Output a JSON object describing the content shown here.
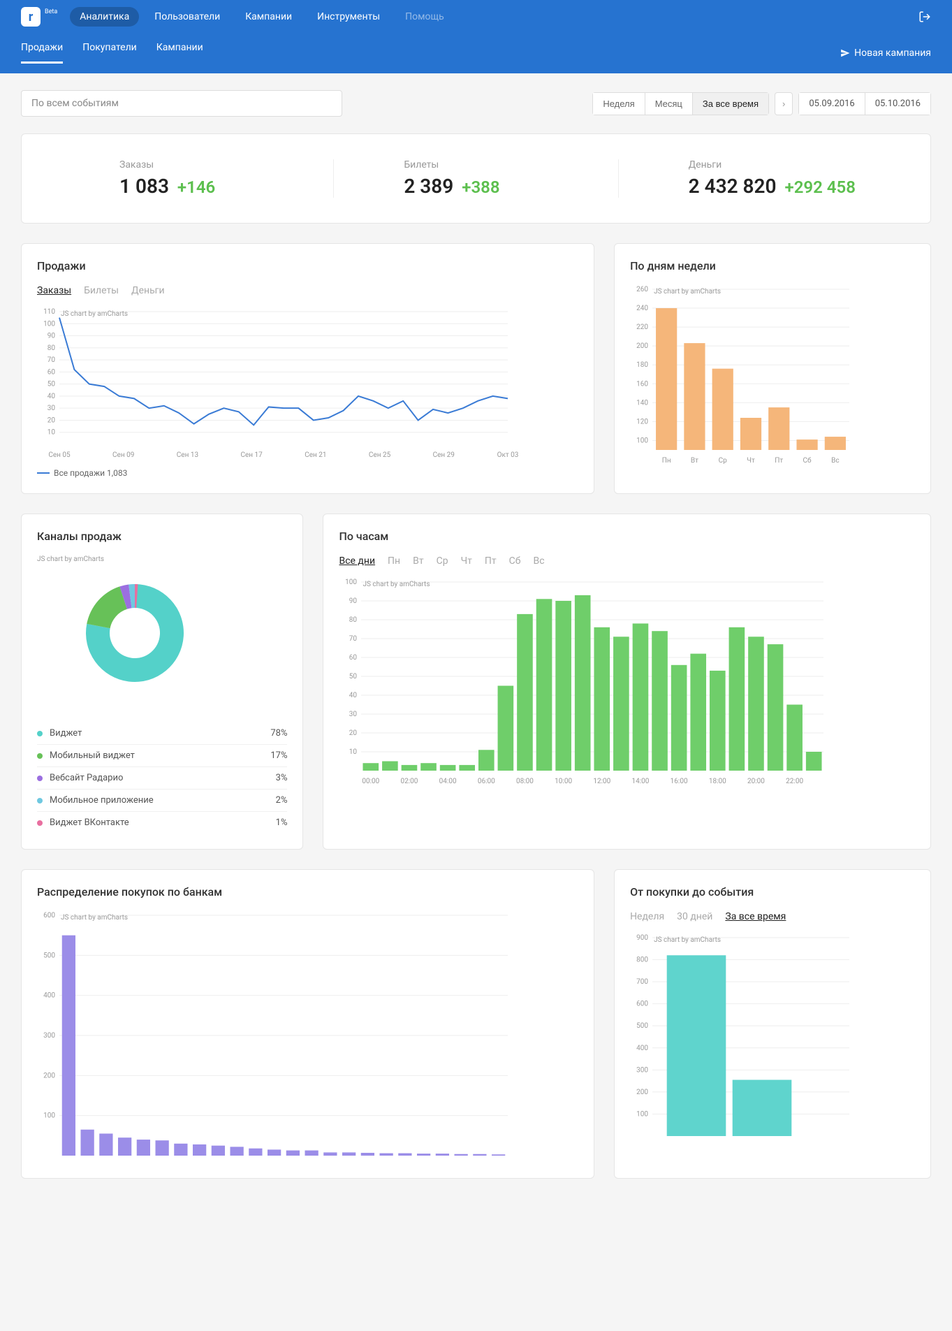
{
  "header": {
    "logo_letter": "r",
    "beta": "Beta",
    "nav": [
      "Аналитика",
      "Пользователи",
      "Кампании",
      "Инструменты"
    ],
    "nav_active": 0,
    "help": "Помощь",
    "subnav": [
      "Продажи",
      "Покупатели",
      "Кампании"
    ],
    "subnav_active": 0,
    "new_campaign": "Новая кампания"
  },
  "filters": {
    "events_placeholder": "По всем событиям",
    "periods": [
      "Неделя",
      "Месяц",
      "За все время"
    ],
    "period_active": 2,
    "date_from": "05.09.2016",
    "date_to": "05.10.2016"
  },
  "kpis": [
    {
      "label": "Заказы",
      "value": "1 083",
      "delta": "+146"
    },
    {
      "label": "Билеты",
      "value": "2 389",
      "delta": "+388"
    },
    {
      "label": "Деньги",
      "value": "2 432 820",
      "delta": "+292 458"
    }
  ],
  "sales_chart": {
    "title": "Продажи",
    "tabs": [
      "Заказы",
      "Билеты",
      "Деньги"
    ],
    "tab_active": 0,
    "credit": "JS chart by amCharts",
    "type": "line",
    "x_labels": [
      "Сен 05",
      "Сен 09",
      "Сен 13",
      "Сен 17",
      "Сен 21",
      "Сен 25",
      "Сен 29",
      "Окт 03"
    ],
    "y_ticks": [
      10,
      20,
      30,
      40,
      50,
      60,
      70,
      80,
      90,
      100,
      110
    ],
    "ylim": [
      0,
      110
    ],
    "line_color": "#3a7bd5",
    "legend": "Все продажи 1,083",
    "values": [
      105,
      62,
      50,
      48,
      40,
      38,
      30,
      32,
      26,
      17,
      25,
      30,
      27,
      16,
      31,
      30,
      30,
      20,
      22,
      28,
      40,
      36,
      30,
      36,
      20,
      29,
      26,
      30,
      36,
      40,
      38
    ]
  },
  "weekday_chart": {
    "title": "По дням недели",
    "credit": "JS chart by amCharts",
    "type": "bar",
    "categories": [
      "Пн",
      "Вт",
      "Ср",
      "Чт",
      "Пт",
      "Сб",
      "Вс"
    ],
    "values": [
      240,
      203,
      176,
      124,
      135,
      101,
      104
    ],
    "y_ticks": [
      100,
      120,
      140,
      160,
      180,
      200,
      220,
      240,
      260
    ],
    "ylim": [
      90,
      260
    ],
    "bar_color": "#f5b67a",
    "grid_color": "#eeeeee"
  },
  "channels_chart": {
    "title": "Каналы продаж",
    "credit": "JS chart by amCharts",
    "type": "donut",
    "items": [
      {
        "label": "Виджет",
        "pct": 78,
        "color": "#54d1c9"
      },
      {
        "label": "Мобильный виджет",
        "pct": 17,
        "color": "#67c158"
      },
      {
        "label": "Вебсайт Радарио",
        "pct": 3,
        "color": "#9b6fe0"
      },
      {
        "label": "Мобильное приложение",
        "pct": 2,
        "color": "#6fc8e0"
      },
      {
        "label": "Виджет ВКонтакте",
        "pct": 1,
        "color": "#e86fa0"
      }
    ]
  },
  "hours_chart": {
    "title": "По часам",
    "tabs": [
      "Все дни",
      "Пн",
      "Вт",
      "Ср",
      "Чт",
      "Пт",
      "Сб",
      "Вс"
    ],
    "tab_active": 0,
    "credit": "JS chart by amCharts",
    "type": "bar",
    "x_labels": [
      "00:00",
      "02:00",
      "04:00",
      "06:00",
      "08:00",
      "10:00",
      "12:00",
      "14:00",
      "16:00",
      "18:00",
      "20:00",
      "22:00"
    ],
    "y_ticks": [
      10,
      20,
      30,
      40,
      50,
      60,
      70,
      80,
      90,
      100
    ],
    "ylim": [
      0,
      100
    ],
    "bar_color": "#6fce6a",
    "values": [
      4,
      5,
      3,
      4,
      3,
      3,
      11,
      45,
      83,
      91,
      90,
      93,
      76,
      71,
      78,
      74,
      56,
      62,
      53,
      76,
      71,
      67,
      35,
      10
    ]
  },
  "banks_chart": {
    "title": "Распределение покупок по банкам",
    "credit": "JS chart by amCharts",
    "type": "bar",
    "y_ticks": [
      100,
      200,
      300,
      400,
      500,
      600
    ],
    "ylim": [
      0,
      600
    ],
    "bar_color": "#9b8de8",
    "values": [
      550,
      65,
      55,
      45,
      40,
      38,
      30,
      28,
      25,
      22,
      18,
      15,
      13,
      13,
      8,
      8,
      7,
      6,
      6,
      5,
      5,
      4,
      4,
      3
    ]
  },
  "purchase_to_event": {
    "title": "От покупки до события",
    "tabs": [
      "Неделя",
      "30 дней",
      "За все время"
    ],
    "tab_active": 2,
    "credit": "JS chart by amCharts",
    "type": "bar",
    "y_ticks": [
      100,
      200,
      300,
      400,
      500,
      600,
      700,
      800,
      900
    ],
    "ylim": [
      0,
      900
    ],
    "bar_color": "#5fd4cd",
    "values": [
      820,
      255
    ]
  },
  "colors": {
    "header_bg": "#2673d0",
    "delta_green": "#5cbf4e",
    "grid": "#eeeeee",
    "text_muted": "#999999"
  }
}
